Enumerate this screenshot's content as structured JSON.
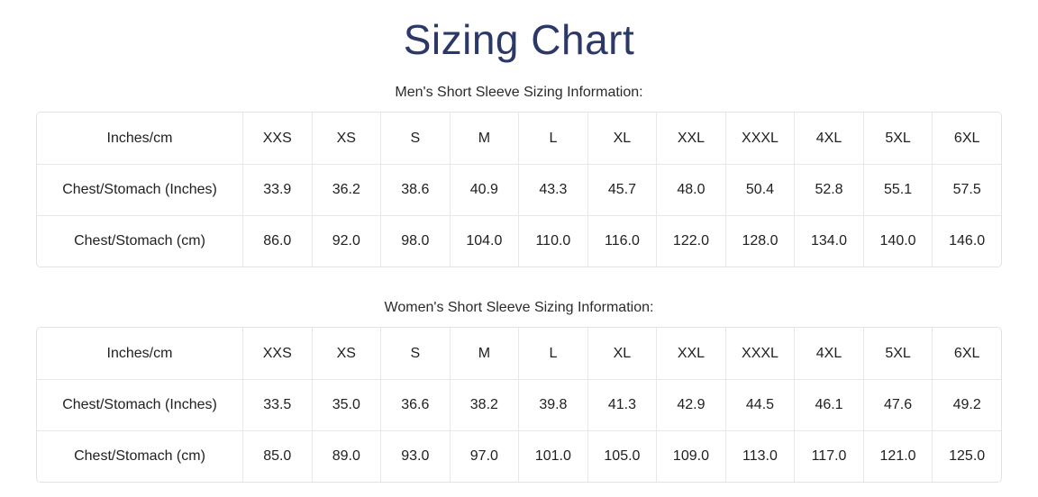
{
  "page_title": "Sizing Chart",
  "colors": {
    "title_navy": "#2c3968",
    "body_text": "#212121",
    "table_border": "#e2e2e4",
    "background": "#ffffff"
  },
  "chart_data": [
    {
      "type": "table",
      "title": "Men's Short Sleeve Sizing Information:",
      "columns": [
        "Inches/cm",
        "XXS",
        "XS",
        "S",
        "M",
        "L",
        "XL",
        "XXL",
        "XXXL",
        "4XL",
        "5XL",
        "6XL"
      ],
      "rows": [
        [
          "Chest/Stomach (Inches)",
          "33.9",
          "36.2",
          "38.6",
          "40.9",
          "43.3",
          "45.7",
          "48.0",
          "50.4",
          "52.8",
          "55.1",
          "57.5"
        ],
        [
          "Chest/Stomach (cm)",
          "86.0",
          "92.0",
          "98.0",
          "104.0",
          "110.0",
          "116.0",
          "122.0",
          "128.0",
          "134.0",
          "140.0",
          "146.0"
        ]
      ]
    },
    {
      "type": "table",
      "title": "Women's Short Sleeve Sizing Information:",
      "columns": [
        "Inches/cm",
        "XXS",
        "XS",
        "S",
        "M",
        "L",
        "XL",
        "XXL",
        "XXXL",
        "4XL",
        "5XL",
        "6XL"
      ],
      "rows": [
        [
          "Chest/Stomach (Inches)",
          "33.5",
          "35.0",
          "36.6",
          "38.2",
          "39.8",
          "41.3",
          "42.9",
          "44.5",
          "46.1",
          "47.6",
          "49.2"
        ],
        [
          "Chest/Stomach (cm)",
          "85.0",
          "89.0",
          "93.0",
          "97.0",
          "101.0",
          "105.0",
          "109.0",
          "113.0",
          "117.0",
          "121.0",
          "125.0"
        ]
      ]
    }
  ]
}
